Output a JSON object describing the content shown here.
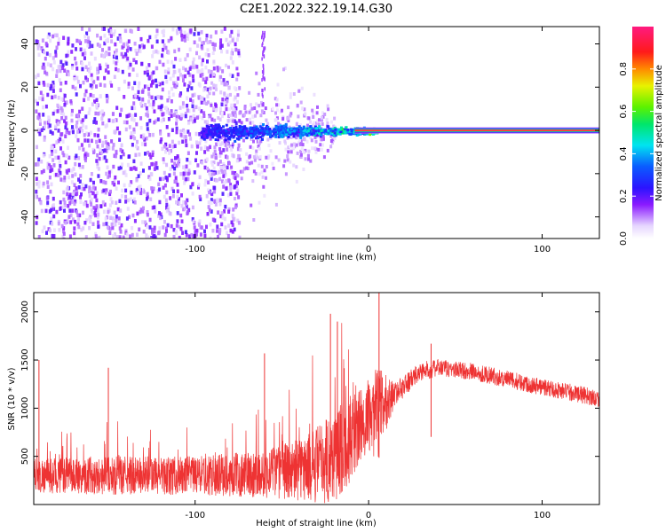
{
  "figure": {
    "title": "C2E1.2022.322.19.14.G30"
  },
  "chart_data": [
    {
      "type": "heatmap",
      "xlabel": "Height of straight line (km)",
      "ylabel": "Frequency (Hz)",
      "xlim": [
        -193,
        133
      ],
      "ylim": [
        -50,
        48
      ],
      "xticks": [
        -100,
        0,
        100
      ],
      "xtick_labels": [
        "-100",
        "0",
        "100"
      ],
      "yticks": [
        -40,
        -20,
        0,
        20,
        40
      ],
      "ytick_labels": [
        "-40",
        "-20",
        "0",
        "20",
        "40"
      ],
      "colorbar": {
        "label": "Normalized spectral amplitude",
        "range": [
          0,
          1
        ],
        "ticks": [
          0.0,
          0.2,
          0.4,
          0.6,
          0.8
        ],
        "tick_labels": [
          "0.0",
          "0.2",
          "0.4",
          "0.6",
          "0.8"
        ],
        "colormap": "white-purple-blue-cyan-green-yellow-red-magenta"
      },
      "features": {
        "noise_region_x": [
          -193,
          -95
        ],
        "transition_region_x": [
          -95,
          0
        ],
        "carrier_frequency_hz": 0,
        "steady_carrier_x": [
          0,
          133
        ]
      }
    },
    {
      "type": "line",
      "xlabel": "Height of straight line (km)",
      "ylabel": "SNR (10 * v/v)",
      "xlim": [
        -193,
        133
      ],
      "ylim": [
        0,
        2200
      ],
      "xticks": [
        -100,
        0,
        100
      ],
      "xtick_labels": [
        "-100",
        "0",
        "100"
      ],
      "yticks": [
        500,
        1000,
        1500,
        2000
      ],
      "ytick_labels": [
        "500",
        "1000",
        "1500",
        "2000"
      ],
      "color": "#ee3333",
      "envelope": {
        "x": [
          -193,
          -150,
          -100,
          -60,
          -35,
          -20,
          -10,
          0,
          5,
          15,
          30,
          40,
          60,
          80,
          100,
          120,
          133
        ],
        "center": [
          300,
          300,
          300,
          320,
          380,
          500,
          700,
          900,
          950,
          1150,
          1380,
          1420,
          1380,
          1300,
          1220,
          1150,
          1100
        ],
        "spread": [
          180,
          200,
          200,
          250,
          350,
          500,
          450,
          350,
          500,
          120,
          100,
          90,
          90,
          90,
          90,
          90,
          90
        ]
      },
      "spikes": [
        {
          "x": 6,
          "y": 2200
        },
        {
          "x": -22,
          "y": 1980
        },
        {
          "x": -18,
          "y": 1900
        },
        {
          "x": -190,
          "y": 1500
        },
        {
          "x": -150,
          "y": 1420
        },
        {
          "x": -60,
          "y": 1570
        },
        {
          "x": 36,
          "y": 1670
        }
      ]
    }
  ]
}
